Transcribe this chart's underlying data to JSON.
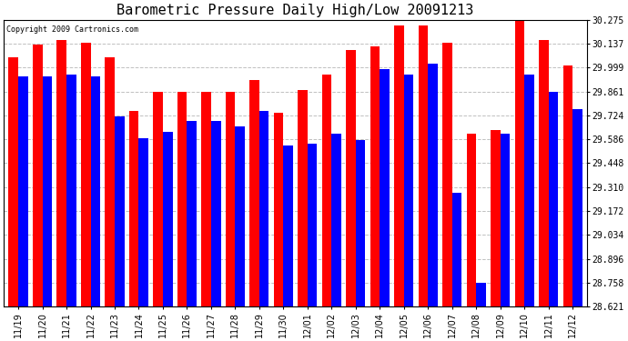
{
  "title": "Barometric Pressure Daily High/Low 20091213",
  "copyright_text": "Copyright 2009 Cartronics.com",
  "dates": [
    "11/19",
    "11/20",
    "11/21",
    "11/22",
    "11/23",
    "11/24",
    "11/25",
    "11/26",
    "11/27",
    "11/28",
    "11/29",
    "11/30",
    "12/01",
    "12/02",
    "12/03",
    "12/04",
    "12/05",
    "12/06",
    "12/07",
    "12/08",
    "12/09",
    "12/10",
    "12/11",
    "12/12"
  ],
  "highs": [
    30.06,
    30.13,
    30.16,
    30.14,
    30.06,
    29.75,
    29.86,
    29.86,
    29.86,
    29.86,
    29.93,
    29.74,
    29.87,
    29.96,
    30.1,
    30.12,
    30.24,
    30.24,
    30.14,
    29.62,
    29.64,
    30.27,
    30.16,
    30.01
  ],
  "lows": [
    29.95,
    29.95,
    29.96,
    29.95,
    29.72,
    29.59,
    29.63,
    29.69,
    29.69,
    29.66,
    29.75,
    29.55,
    29.56,
    29.62,
    29.58,
    29.99,
    29.96,
    30.02,
    29.28,
    28.76,
    29.62,
    29.96,
    29.86,
    29.76
  ],
  "ymin": 28.621,
  "ymax": 30.275,
  "yticks": [
    30.275,
    30.137,
    29.999,
    29.861,
    29.724,
    29.586,
    29.448,
    29.31,
    29.172,
    29.034,
    28.896,
    28.758,
    28.621
  ],
  "high_color": "#ff0000",
  "low_color": "#0000ff",
  "bg_color": "#ffffff",
  "grid_color": "#c0c0c0",
  "title_fontsize": 11,
  "bar_width": 0.4,
  "figwidth": 6.9,
  "figheight": 3.75,
  "dpi": 100
}
